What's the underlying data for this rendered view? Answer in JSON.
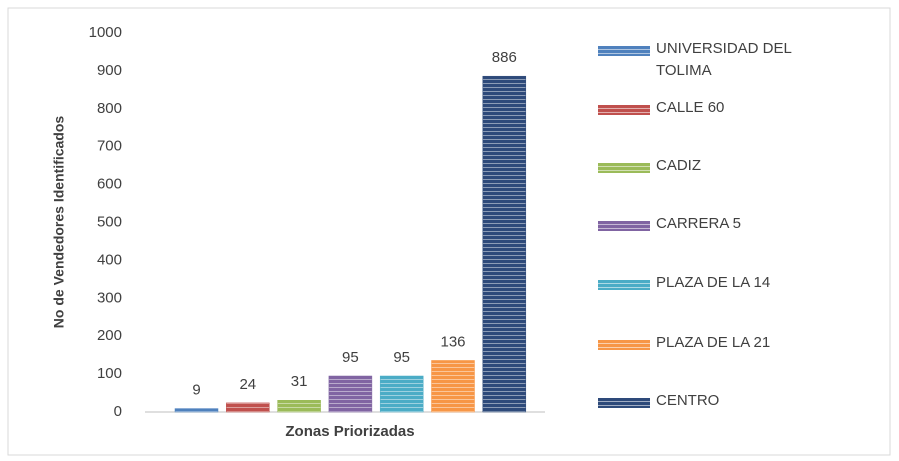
{
  "chart_data": {
    "type": "bar",
    "ylabel": "No de Vendedores  Identificados",
    "xlabel": "Zonas Priorizadas",
    "ylim": [
      0,
      1000
    ],
    "yticks": [
      0,
      100,
      200,
      300,
      400,
      500,
      600,
      700,
      800,
      900,
      1000
    ],
    "grid": false,
    "legend": "right",
    "series": [
      {
        "name": "UNIVERSIDAD DEL TOLIMA",
        "color": "#4f81bd",
        "values": [
          9
        ]
      },
      {
        "name": "CALLE 60",
        "color": "#c0504d",
        "values": [
          24
        ]
      },
      {
        "name": "CADIZ",
        "color": "#9bbb59",
        "values": [
          31
        ]
      },
      {
        "name": "CARRERA 5",
        "color": "#8064a2",
        "values": [
          95
        ]
      },
      {
        "name": "PLAZA DE LA 14",
        "color": "#4bacc6",
        "values": [
          95
        ]
      },
      {
        "name": "PLAZA DE LA 21",
        "color": "#f79646",
        "values": [
          136
        ]
      },
      {
        "name": "CENTRO",
        "color": "#2e4a7a",
        "values": [
          886
        ]
      }
    ]
  }
}
